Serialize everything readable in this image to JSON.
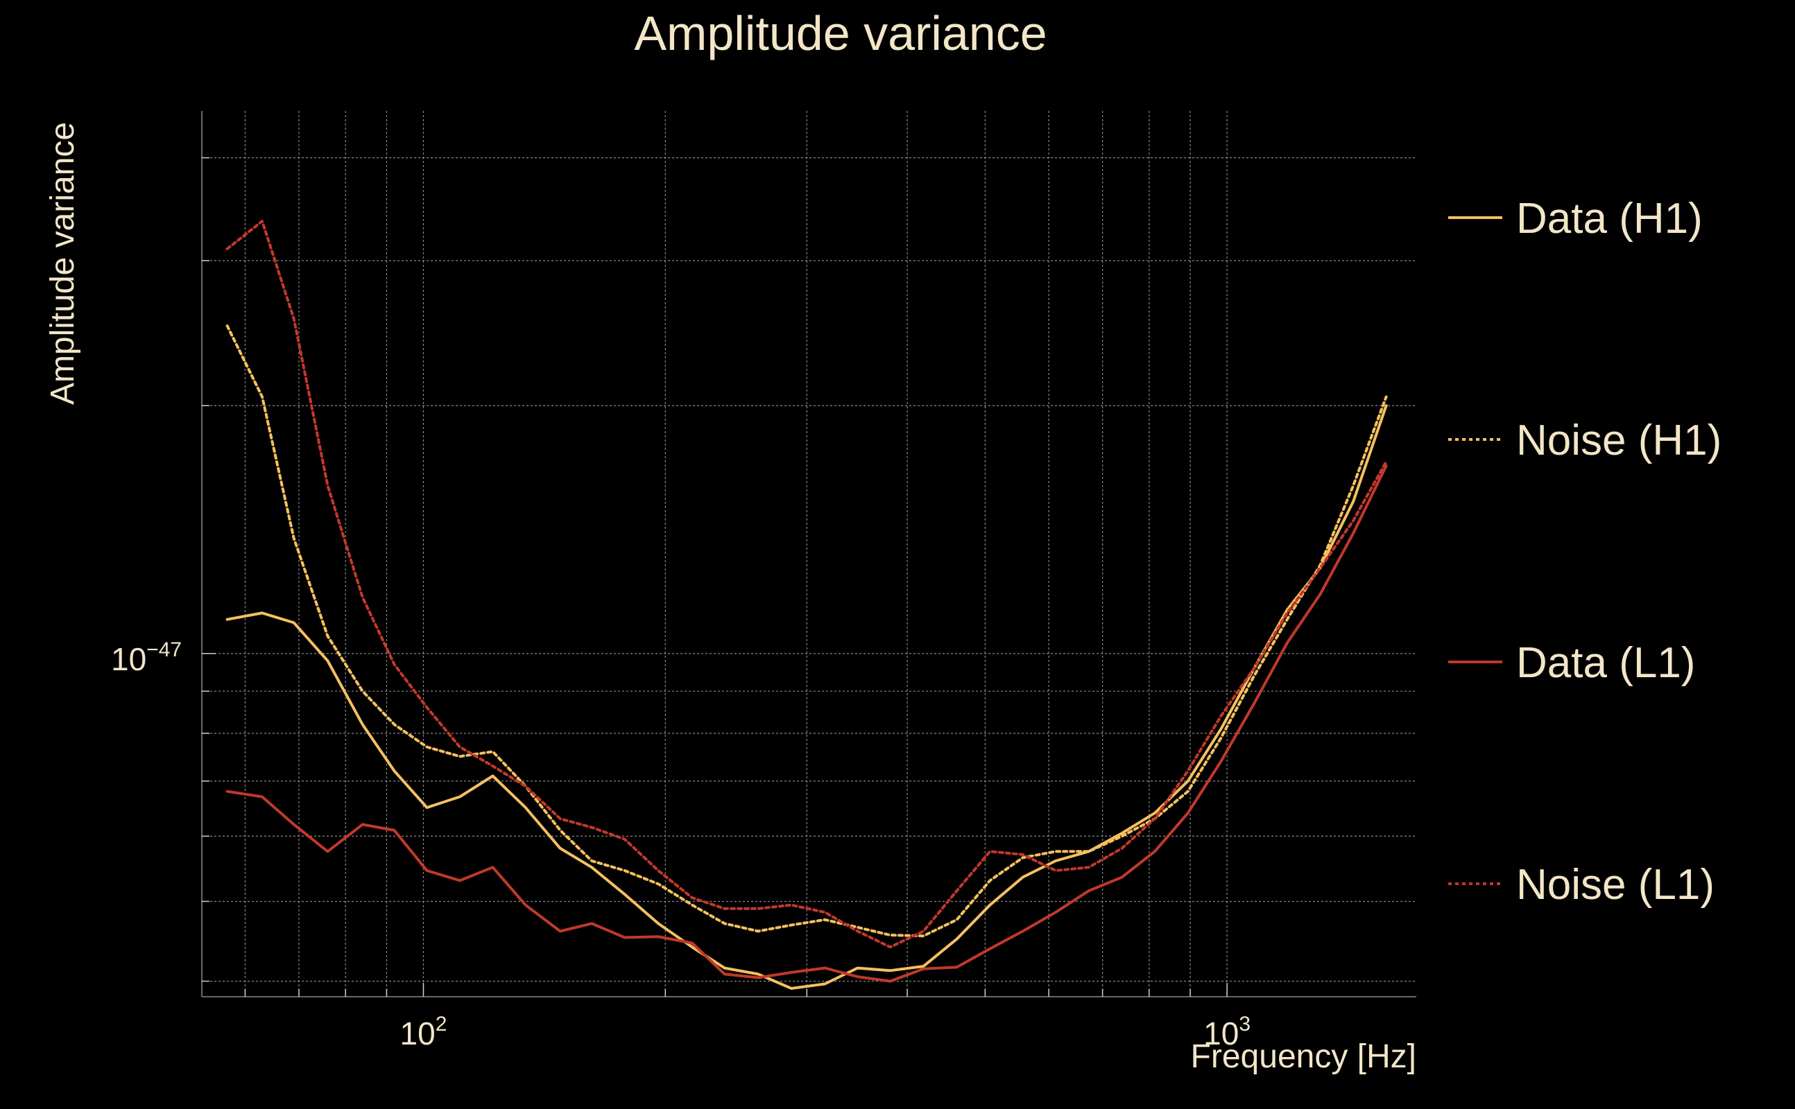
{
  "chart_data": {
    "type": "line",
    "title": "Amplitude variance",
    "xlabel": "Frequency [Hz]",
    "ylabel": "Amplitude variance",
    "x_scale": "log",
    "y_scale": "log",
    "x_tick_labels": [
      {
        "value": 100,
        "base": "10",
        "exp": "2"
      },
      {
        "value": 1000,
        "base": "10",
        "exp": "3"
      }
    ],
    "y_tick_labels": [
      {
        "value": 1e-47,
        "base": "10",
        "exp": "−47"
      }
    ],
    "xlim": [
      53,
      1720
    ],
    "ylim": [
      3.83e-48,
      4.56e-47
    ],
    "grid": true,
    "legend_position": "right",
    "series": [
      {
        "name": "Data (H1)",
        "color": "#f4c060",
        "style": "solid",
        "x": [
          57,
          63,
          69,
          76,
          84,
          92,
          101,
          111,
          122,
          134,
          148,
          162,
          178,
          196,
          216,
          237,
          261,
          287,
          316,
          347,
          381,
          419,
          461,
          507,
          557,
          612,
          673,
          740,
          813,
          894,
          983,
          1081,
          1188,
          1306,
          1436,
          1578
        ],
        "y": [
          1.1e-47,
          1.12e-47,
          1.09e-47,
          9.8e-48,
          8.2e-48,
          7.2e-48,
          6.5e-48,
          6.7e-48,
          7.1e-48,
          6.5e-48,
          5.8e-48,
          5.5e-48,
          5.1e-48,
          4.7e-48,
          4.4e-48,
          4.15e-48,
          4.08e-48,
          3.92e-48,
          3.97e-48,
          4.15e-48,
          4.12e-48,
          4.17e-48,
          4.5e-48,
          4.95e-48,
          5.35e-48,
          5.6e-48,
          5.75e-48,
          6.05e-48,
          6.4e-48,
          7e-48,
          8.1e-48,
          9.6e-48,
          1.13e-47,
          1.27e-47,
          1.53e-47,
          2e-47
        ]
      },
      {
        "name": "Noise (H1)",
        "color": "#f4c060",
        "style": "dotted",
        "x": [
          57,
          63,
          69,
          76,
          84,
          92,
          101,
          111,
          122,
          134,
          148,
          162,
          178,
          196,
          216,
          237,
          261,
          287,
          316,
          347,
          381,
          419,
          461,
          507,
          557,
          612,
          673,
          740,
          813,
          894,
          983,
          1081,
          1188,
          1306,
          1436,
          1578
        ],
        "y": [
          2.5e-47,
          2.05e-47,
          1.38e-47,
          1.05e-47,
          9e-48,
          8.2e-48,
          7.7e-48,
          7.5e-48,
          7.6e-48,
          6.9e-48,
          6.1e-48,
          5.6e-48,
          5.45e-48,
          5.25e-48,
          4.95e-48,
          4.7e-48,
          4.6e-48,
          4.68e-48,
          4.75e-48,
          4.65e-48,
          4.55e-48,
          4.54e-48,
          4.75e-48,
          5.3e-48,
          5.65e-48,
          5.75e-48,
          5.75e-48,
          6e-48,
          6.3e-48,
          6.8e-48,
          7.9e-48,
          9.4e-48,
          1.1e-47,
          1.28e-47,
          1.6e-47,
          2.05e-47
        ]
      },
      {
        "name": "Data (L1)",
        "color": "#c0392b",
        "style": "solid",
        "x": [
          57,
          63,
          69,
          76,
          84,
          92,
          101,
          111,
          122,
          134,
          148,
          162,
          178,
          196,
          216,
          237,
          261,
          287,
          316,
          347,
          381,
          419,
          461,
          507,
          557,
          612,
          673,
          740,
          813,
          894,
          983,
          1081,
          1188,
          1306,
          1436,
          1578
        ],
        "y": [
          6.8e-48,
          6.7e-48,
          6.2e-48,
          5.75e-48,
          6.2e-48,
          6.1e-48,
          5.45e-48,
          5.3e-48,
          5.5e-48,
          4.95e-48,
          4.6e-48,
          4.7e-48,
          4.52e-48,
          4.53e-48,
          4.45e-48,
          4.08e-48,
          4.04e-48,
          4.1e-48,
          4.15e-48,
          4.05e-48,
          4e-48,
          4.14e-48,
          4.16e-48,
          4.38e-48,
          4.6e-48,
          4.85e-48,
          5.15e-48,
          5.35e-48,
          5.75e-48,
          6.4e-48,
          7.4e-48,
          8.7e-48,
          1.03e-47,
          1.18e-47,
          1.4e-47,
          1.69e-47
        ]
      },
      {
        "name": "Noise (L1)",
        "color": "#c0392b",
        "style": "dotted",
        "x": [
          57,
          63,
          69,
          76,
          84,
          92,
          101,
          111,
          122,
          134,
          148,
          162,
          178,
          196,
          216,
          237,
          261,
          287,
          316,
          347,
          381,
          419,
          461,
          507,
          557,
          612,
          673,
          740,
          813,
          894,
          983,
          1081,
          1188,
          1306,
          1436,
          1578
        ],
        "y": [
          3.1e-47,
          3.35e-47,
          2.55e-47,
          1.6e-47,
          1.17e-47,
          9.7e-48,
          8.6e-48,
          7.7e-48,
          7.3e-48,
          6.9e-48,
          6.3e-48,
          6.15e-48,
          5.95e-48,
          5.45e-48,
          5.05e-48,
          4.9e-48,
          4.9e-48,
          4.95e-48,
          4.85e-48,
          4.6e-48,
          4.4e-48,
          4.6e-48,
          5.15e-48,
          5.75e-48,
          5.7e-48,
          5.45e-48,
          5.5e-48,
          5.8e-48,
          6.3e-48,
          7.2e-48,
          8.4e-48,
          9.6e-48,
          1.12e-47,
          1.27e-47,
          1.45e-47,
          1.71e-47
        ]
      }
    ]
  }
}
